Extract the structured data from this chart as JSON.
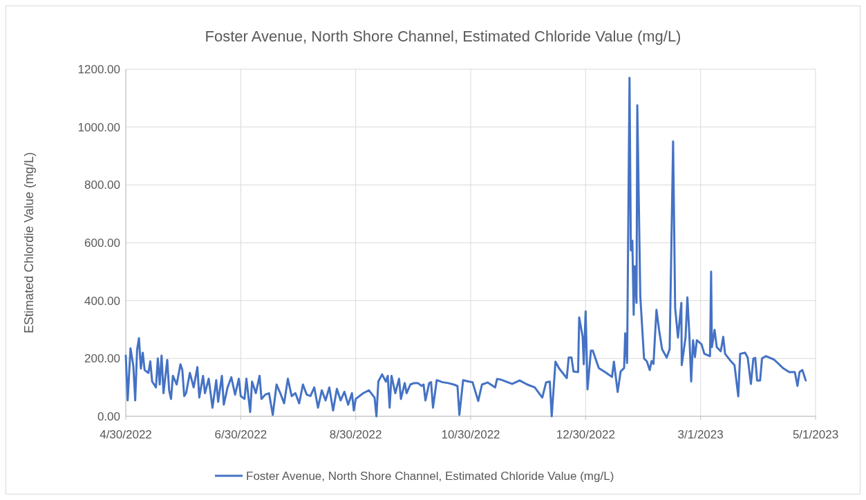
{
  "chart_data": {
    "type": "line",
    "title": "Foster Avenue, North Shore Channel, Estimated Chloride Value (mg/L)",
    "ylabel": "EStimated Chlordie Value (mg/L)",
    "xlim": [
      "2022-04-30",
      "2023-05-01"
    ],
    "xticks": [
      {
        "value": "2022-04-30",
        "label": "4/30/2022"
      },
      {
        "value": "2022-06-30",
        "label": "6/30/2022"
      },
      {
        "value": "2022-08-30",
        "label": "8/30/2022"
      },
      {
        "value": "2022-10-30",
        "label": "10/30/2022"
      },
      {
        "value": "2022-12-30",
        "label": "12/30/2022"
      },
      {
        "value": "2023-03-01",
        "label": "3/1/2023"
      },
      {
        "value": "2023-05-01",
        "label": "5/1/2023"
      }
    ],
    "ylim": [
      0,
      1200
    ],
    "yticks": [
      {
        "value": 0,
        "label": "0.00"
      },
      {
        "value": 200,
        "label": "200.00"
      },
      {
        "value": 400,
        "label": "400.00"
      },
      {
        "value": 600,
        "label": "600.00"
      },
      {
        "value": 800,
        "label": "800.00"
      },
      {
        "value": 1000,
        "label": "1000.00"
      },
      {
        "value": 1200,
        "label": "1200.00"
      }
    ],
    "grid": true,
    "legend": "bottom",
    "series": [
      {
        "name": "Foster Avenue, North Shore Channel, Estimated Chloride Value (mg/L)",
        "color": "#4472c4",
        "x": [
          "2022-04-30",
          "2022-05-01",
          "2022-05-02T12:00",
          "2022-05-04",
          "2022-05-05",
          "2022-05-06",
          "2022-05-07",
          "2022-05-08",
          "2022-05-09",
          "2022-05-10",
          "2022-05-12",
          "2022-05-13",
          "2022-05-14",
          "2022-05-16",
          "2022-05-17",
          "2022-05-18",
          "2022-05-19",
          "2022-05-20",
          "2022-05-22",
          "2022-05-23",
          "2022-05-24",
          "2022-05-25",
          "2022-05-27",
          "2022-05-29",
          "2022-05-30",
          "2022-05-31",
          "2022-06-01",
          "2022-06-03",
          "2022-06-05",
          "2022-06-07",
          "2022-06-08",
          "2022-06-10",
          "2022-06-11",
          "2022-06-13",
          "2022-06-15",
          "2022-06-17",
          "2022-06-18",
          "2022-06-20",
          "2022-06-21",
          "2022-06-23",
          "2022-06-25",
          "2022-06-27",
          "2022-06-29",
          "2022-06-30",
          "2022-07-02",
          "2022-07-03",
          "2022-07-05",
          "2022-07-06",
          "2022-07-08",
          "2022-07-10",
          "2022-07-11",
          "2022-07-13",
          "2022-07-15",
          "2022-07-17",
          "2022-07-19",
          "2022-07-21",
          "2022-07-23",
          "2022-07-25",
          "2022-07-27",
          "2022-07-29",
          "2022-07-31",
          "2022-08-02",
          "2022-08-04",
          "2022-08-06",
          "2022-08-08",
          "2022-08-10",
          "2022-08-12",
          "2022-08-14",
          "2022-08-16",
          "2022-08-18",
          "2022-08-20",
          "2022-08-22",
          "2022-08-24",
          "2022-08-26",
          "2022-08-28",
          "2022-08-29",
          "2022-08-30",
          "2022-09-03",
          "2022-09-06",
          "2022-09-09",
          "2022-09-10",
          "2022-09-11",
          "2022-09-13",
          "2022-09-15",
          "2022-09-16",
          "2022-09-17",
          "2022-09-18",
          "2022-09-20",
          "2022-09-22",
          "2022-09-23",
          "2022-09-25",
          "2022-09-26",
          "2022-09-28",
          "2022-09-30",
          "2022-10-02",
          "2022-10-04",
          "2022-10-05",
          "2022-10-06",
          "2022-10-08",
          "2022-10-09",
          "2022-10-10",
          "2022-10-12",
          "2022-10-15",
          "2022-10-18",
          "2022-10-21",
          "2022-10-23",
          "2022-10-24",
          "2022-10-26",
          "2022-10-29",
          "2022-10-31",
          "2022-11-03",
          "2022-11-05",
          "2022-11-08",
          "2022-11-12",
          "2022-11-13",
          "2022-11-15",
          "2022-11-21",
          "2022-11-25",
          "2022-11-29",
          "2022-12-03",
          "2022-12-07",
          "2022-12-09",
          "2022-12-11",
          "2022-12-12",
          "2022-12-14",
          "2022-12-16",
          "2022-12-20",
          "2022-12-21",
          "2022-12-22T12:00",
          "2022-12-23T14:00",
          "2022-12-26",
          "2022-12-26T14:00",
          "2022-12-28T10:00",
          "2022-12-29",
          "2022-12-30",
          "2022-12-31",
          "2023-01-01T19:00",
          "2023-01-02T19:00",
          "2023-01-06",
          "2023-01-10",
          "2023-01-13",
          "2023-01-14",
          "2023-01-16",
          "2023-01-17T14:00",
          "2023-01-19T10:00",
          "2023-01-20",
          "2023-01-21",
          "2023-01-22T07:00",
          "2023-01-23",
          "2023-01-23T19:00",
          "2023-01-24T12:00",
          "2023-01-25",
          "2023-01-26",
          "2023-01-26T10:00",
          "2023-01-28",
          "2023-01-30",
          "2023-01-31T12:00",
          "2023-02-02",
          "2023-02-03",
          "2023-02-04",
          "2023-02-05T14:00",
          "2023-02-07",
          "2023-02-08T14:00",
          "2023-02-11",
          "2023-02-12T14:00",
          "2023-02-14T10:00",
          "2023-02-15T12:00",
          "2023-02-17",
          "2023-02-18T19:00",
          "2023-02-19",
          "2023-02-21",
          "2023-02-22",
          "2023-02-23",
          "2023-02-24",
          "2023-02-25",
          "2023-02-26",
          "2023-02-27",
          "2023-03-01T12:00",
          "2023-03-03",
          "2023-03-06",
          "2023-03-06T14:00",
          "2023-03-07",
          "2023-03-08T10:00",
          "2023-03-09T14:00",
          "2023-03-11T17:00",
          "2023-03-13",
          "2023-03-14",
          "2023-03-17",
          "2023-03-19",
          "2023-03-21",
          "2023-03-22",
          "2023-03-24T14:00",
          "2023-03-26",
          "2023-03-27T17:00",
          "2023-03-29",
          "2023-03-30",
          "2023-03-31",
          "2023-04-01T14:00",
          "2023-04-02T14:00",
          "2023-04-04T14:00",
          "2023-04-09",
          "2023-04-13T17:00",
          "2023-04-17",
          "2023-04-20",
          "2023-04-21T10:00",
          "2023-04-22T12:00",
          "2023-04-24",
          "2023-04-25T19:00"
        ],
        "values": [
          210,
          55,
          235,
          175,
          55,
          230,
          270,
          165,
          220,
          160,
          150,
          190,
          120,
          100,
          200,
          110,
          210,
          80,
          195,
          90,
          60,
          140,
          110,
          180,
          160,
          70,
          80,
          150,
          100,
          170,
          65,
          140,
          80,
          130,
          30,
          125,
          50,
          140,
          40,
          100,
          135,
          75,
          130,
          70,
          60,
          130,
          15,
          120,
          80,
          140,
          60,
          75,
          80,
          5,
          110,
          80,
          45,
          130,
          70,
          80,
          45,
          110,
          75,
          70,
          100,
          30,
          90,
          55,
          100,
          20,
          95,
          55,
          85,
          40,
          80,
          20,
          60,
          80,
          90,
          65,
          0,
          120,
          145,
          120,
          140,
          30,
          140,
          80,
          130,
          60,
          115,
          80,
          110,
          115,
          115,
          105,
          110,
          55,
          115,
          118,
          30,
          125,
          118,
          115,
          110,
          105,
          5,
          125,
          120,
          118,
          53,
          110,
          117,
          100,
          129,
          127,
          112,
          124,
          110,
          100,
          65,
          117,
          120,
          0,
          189,
          165,
          132,
          203,
          203,
          155,
          153,
          342,
          275,
          180,
          363,
          93,
          227,
          227,
          167,
          150,
          136,
          189,
          84,
          155,
          167,
          287,
          184,
          1170,
          574,
          607,
          351,
          519,
          392,
          1075,
          416,
          200,
          190,
          160,
          191,
          181,
          368,
          297,
          232,
          203,
          232,
          950,
          375,
          272,
          392,
          177,
          272,
          411,
          287,
          120,
          263,
          205,
          263,
          249,
          216,
          208,
          500,
          239,
          299,
          239,
          225,
          275,
          216,
          191,
          177,
          69,
          216,
          220,
          203,
          112,
          200,
          202,
          124,
          124,
          200,
          208,
          196,
          167,
          153,
          153,
          105,
          153,
          160,
          124
        ]
      }
    ]
  }
}
